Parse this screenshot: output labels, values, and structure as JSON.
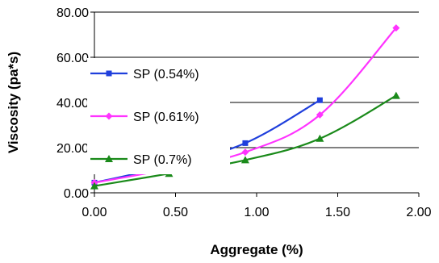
{
  "chart_data": {
    "type": "line",
    "title": "",
    "xlabel": "Aggregate (%)",
    "ylabel": "Viscosity (pa*s)",
    "xlim": [
      0,
      2
    ],
    "ylim": [
      0,
      80
    ],
    "x_ticks": [
      "0.00",
      "0.50",
      "1.00",
      "1.50",
      "2.00"
    ],
    "y_ticks": [
      "0.00",
      "20.00",
      "40.00",
      "60.00",
      "80.00"
    ],
    "grid": "horizontal",
    "legend_position": "left",
    "series": [
      {
        "name": "SP (0.54%)",
        "color": "#1f3fdc",
        "marker": "square",
        "x": [
          0,
          0.46,
          0.93,
          1.39
        ],
        "y": [
          4.5,
          12,
          22,
          41
        ]
      },
      {
        "name": "SP (0.61%)",
        "color": "#ff33ff",
        "marker": "diamond",
        "x": [
          0,
          0.46,
          0.93,
          1.39,
          1.86
        ],
        "y": [
          4.5,
          10.5,
          18,
          34.5,
          73
        ]
      },
      {
        "name": "SP (0.7%)",
        "color": "#1a8a1a",
        "marker": "triangle",
        "x": [
          0,
          0.46,
          0.93,
          1.39,
          1.86
        ],
        "y": [
          3,
          8.5,
          14.5,
          24,
          43
        ]
      }
    ]
  }
}
